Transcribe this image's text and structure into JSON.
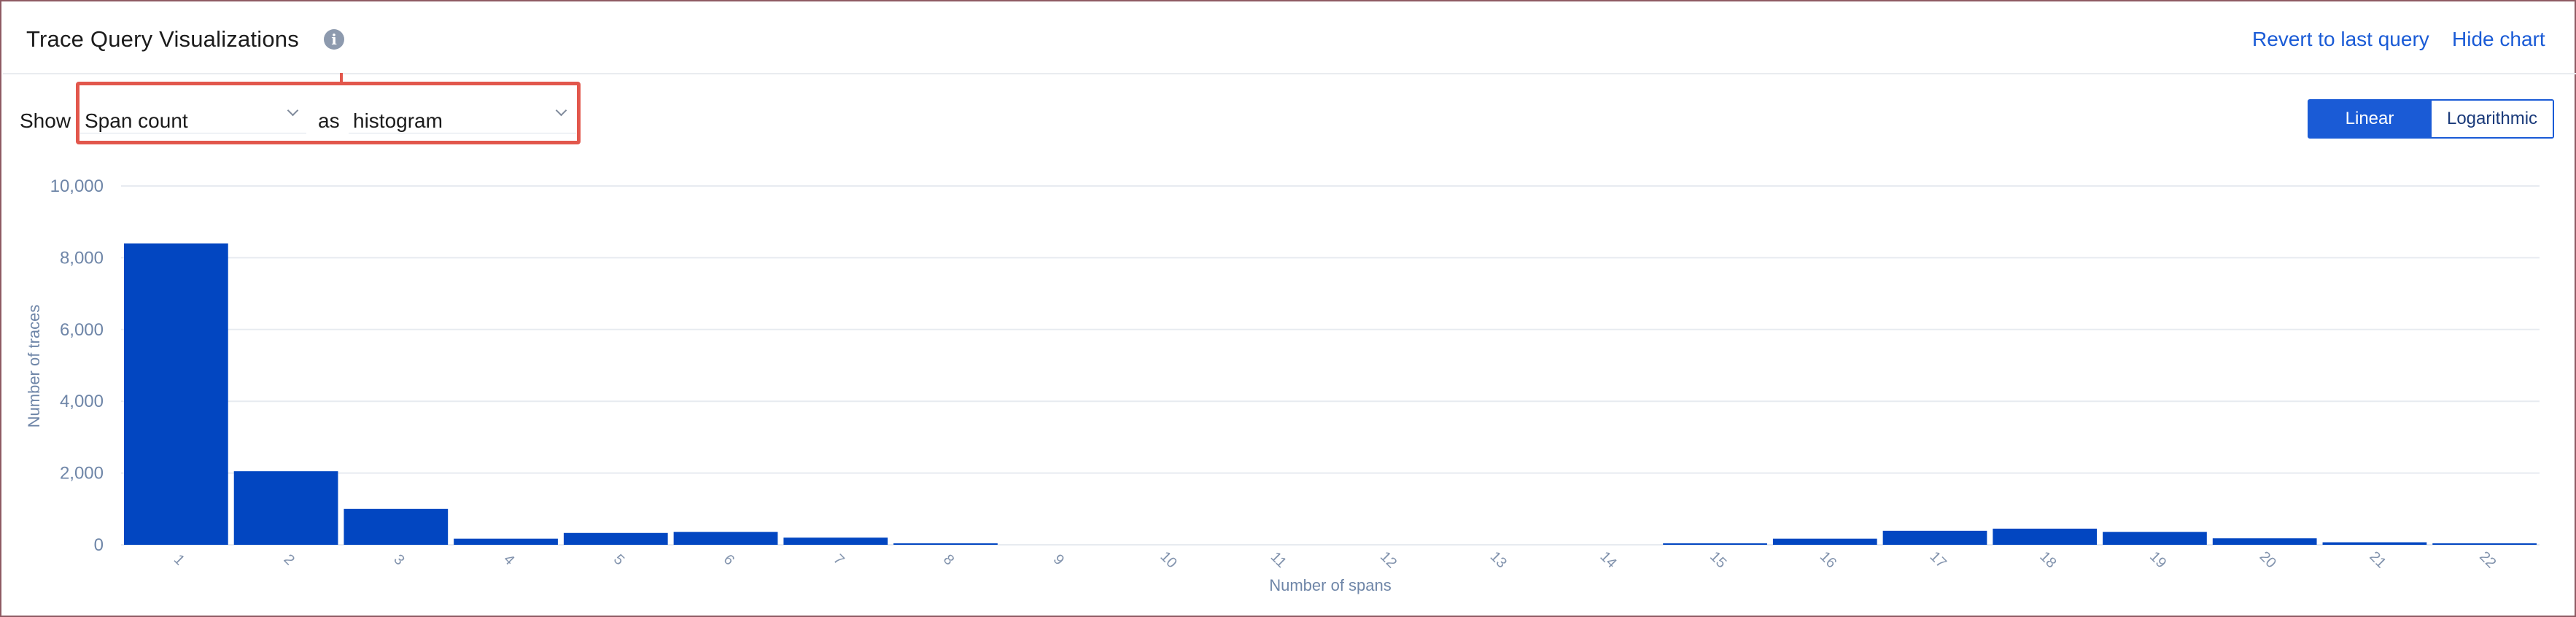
{
  "header": {
    "title": "Trace Query Visualizations",
    "info_icon": "info-icon",
    "revert_link": "Revert to last query",
    "hide_link": "Hide chart"
  },
  "controls": {
    "show_label": "Show",
    "metric_value": "Span count",
    "as_label": "as",
    "viz_value": "histogram",
    "scale_linear": "Linear",
    "scale_log": "Logarithmic",
    "scale_selected": "Linear"
  },
  "colors": {
    "accent": "#1a5bd6",
    "bar": "#0246c1",
    "highlight": "#e2574c"
  },
  "chart_data": {
    "type": "bar",
    "xlabel": "Number of spans",
    "ylabel": "Number of traces",
    "ylim": [
      0,
      10000
    ],
    "yticks": [
      "0",
      "2,000",
      "4,000",
      "6,000",
      "8,000",
      "10,000"
    ],
    "categories": [
      "1",
      "2",
      "3",
      "4",
      "5",
      "6",
      "7",
      "8",
      "9",
      "10",
      "11",
      "12",
      "13",
      "14",
      "15",
      "16",
      "17",
      "18",
      "19",
      "20",
      "21",
      "22"
    ],
    "values": [
      8400,
      2050,
      1000,
      170,
      330,
      360,
      200,
      20,
      0,
      0,
      0,
      0,
      0,
      0,
      30,
      170,
      390,
      450,
      360,
      180,
      70,
      30
    ],
    "grid": true,
    "legend": "none"
  }
}
